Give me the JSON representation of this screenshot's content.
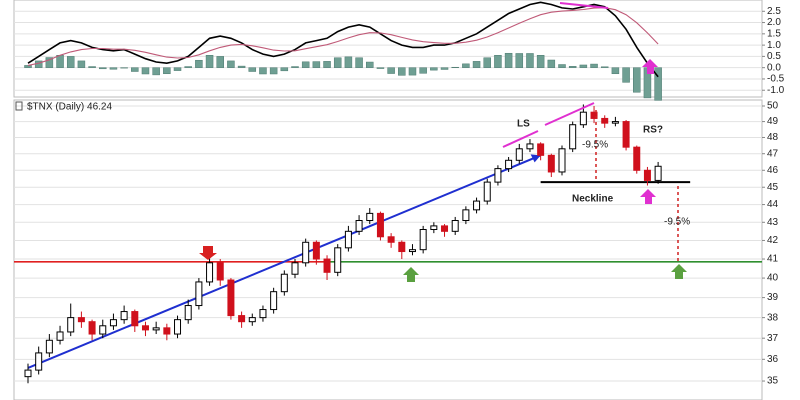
{
  "chart_data": [
    {
      "type": "macd",
      "ylim": [
        -1.3,
        3.0
      ],
      "yticks": [
        {
          "value": -1,
          "label": "-1.0"
        },
        -0.5,
        {
          "value": 0,
          "label": "0.0"
        },
        0.5,
        {
          "value": 1,
          "label": "1.0"
        },
        1.5,
        {
          "value": 2,
          "label": "2.0"
        },
        2.5
      ],
      "grid": true,
      "series": [
        {
          "kind": "histogram",
          "color": "#6f9f93",
          "values": [
            0.1,
            0.3,
            0.45,
            0.55,
            0.5,
            0.3,
            0.05,
            -0.05,
            -0.07,
            -0.02,
            -0.17,
            -0.28,
            -0.32,
            -0.27,
            -0.13,
            0.05,
            0.33,
            0.55,
            0.5,
            0.3,
            0.07,
            -0.17,
            -0.28,
            -0.28,
            -0.14,
            0.05,
            0.26,
            0.27,
            0.28,
            0.44,
            0.48,
            0.44,
            0.25,
            -0.04,
            -0.26,
            -0.34,
            -0.33,
            -0.25,
            -0.11,
            -0.08,
            0.02,
            0.17,
            0.28,
            0.44,
            0.55,
            0.64,
            0.63,
            0.63,
            0.55,
            0.34,
            0.14,
            0.06,
            0.12,
            0.16,
            0.04,
            -0.27,
            -0.65,
            -1.09,
            -1.34,
            -1.45
          ]
        },
        {
          "kind": "line",
          "color": "#000000",
          "values": [
            0.2,
            0.5,
            0.8,
            1.1,
            1.2,
            1.1,
            0.9,
            0.8,
            0.75,
            0.8,
            0.6,
            0.4,
            0.25,
            0.2,
            0.3,
            0.5,
            0.9,
            1.3,
            1.4,
            1.3,
            1.1,
            0.8,
            0.6,
            0.5,
            0.6,
            0.8,
            1.1,
            1.2,
            1.3,
            1.6,
            1.8,
            1.9,
            1.8,
            1.5,
            1.2,
            1.0,
            0.9,
            0.9,
            1.0,
            1.0,
            1.1,
            1.3,
            1.5,
            1.8,
            2.1,
            2.4,
            2.6,
            2.8,
            2.9,
            2.8,
            2.65,
            2.6,
            2.7,
            2.8,
            2.7,
            2.3,
            1.7,
            0.9,
            0.2,
            -0.4
          ]
        },
        {
          "kind": "line",
          "color": "#c05a78",
          "values": [
            0.1,
            0.2,
            0.35,
            0.55,
            0.7,
            0.8,
            0.85,
            0.85,
            0.82,
            0.82,
            0.77,
            0.68,
            0.57,
            0.47,
            0.43,
            0.45,
            0.57,
            0.75,
            0.9,
            1.0,
            1.03,
            0.97,
            0.88,
            0.78,
            0.74,
            0.75,
            0.84,
            0.93,
            1.02,
            1.16,
            1.32,
            1.46,
            1.55,
            1.54,
            1.46,
            1.34,
            1.23,
            1.15,
            1.11,
            1.08,
            1.08,
            1.13,
            1.22,
            1.36,
            1.55,
            1.76,
            1.97,
            2.17,
            2.35,
            2.46,
            2.51,
            2.54,
            2.58,
            2.64,
            2.66,
            2.57,
            2.35,
            1.99,
            1.54,
            1.05
          ]
        }
      ]
    },
    {
      "type": "candlestick",
      "title": "$TNX (Daily) 46.24",
      "log_scale": true,
      "ylim": [
        34.15,
        50.39
      ],
      "yticks": [
        35,
        36,
        37,
        38,
        39,
        40,
        41,
        42,
        43,
        44,
        45,
        46,
        47,
        48,
        49,
        50
      ],
      "grid": true,
      "up_color": "#ffffff",
      "down_color": "#d0101c",
      "open": [
        35.2,
        35.5,
        36.3,
        36.9,
        37.3,
        38.0,
        37.8,
        37.2,
        37.6,
        37.9,
        38.3,
        37.6,
        37.4,
        37.5,
        37.2,
        37.9,
        38.6,
        39.8,
        40.8,
        39.9,
        38.1,
        37.8,
        38.0,
        38.4,
        39.3,
        40.2,
        40.8,
        41.9,
        41.0,
        40.3,
        41.6,
        42.5,
        43.1,
        43.5,
        42.2,
        41.9,
        41.4,
        41.5,
        42.6,
        42.8,
        42.5,
        43.1,
        43.7,
        44.2,
        45.3,
        46.1,
        46.6,
        47.3,
        47.6,
        46.9,
        45.9,
        47.3,
        48.8,
        49.6,
        49.2,
        48.9,
        49.0,
        47.4,
        46.0,
        45.4
      ],
      "high": [
        35.8,
        36.6,
        37.2,
        37.6,
        38.7,
        38.3,
        37.9,
        37.9,
        38.2,
        38.6,
        38.4,
        37.8,
        37.8,
        37.7,
        38.1,
        38.9,
        40.0,
        41.1,
        41.0,
        40.0,
        38.3,
        38.2,
        38.6,
        39.5,
        40.4,
        41.0,
        42.1,
        42.0,
        41.2,
        41.8,
        42.8,
        43.4,
        43.8,
        43.6,
        42.4,
        42.0,
        41.8,
        42.8,
        43.0,
        42.9,
        43.3,
        43.9,
        44.4,
        45.5,
        46.3,
        46.8,
        47.6,
        47.9,
        47.7,
        47.0,
        47.5,
        49.0,
        50.1,
        50.0,
        49.4,
        49.3,
        49.1,
        47.5,
        46.2,
        46.5
      ],
      "low": [
        34.9,
        35.3,
        36.1,
        36.7,
        37.1,
        37.5,
        36.9,
        37.0,
        37.4,
        37.7,
        37.3,
        37.1,
        37.2,
        36.9,
        37.0,
        37.7,
        38.4,
        39.6,
        39.6,
        37.9,
        37.5,
        37.6,
        37.8,
        38.2,
        39.1,
        40.0,
        40.6,
        40.7,
        39.9,
        40.1,
        41.4,
        42.3,
        42.9,
        42.0,
        41.6,
        41.0,
        41.2,
        41.3,
        42.4,
        42.2,
        42.3,
        42.9,
        43.5,
        44.0,
        45.1,
        45.9,
        46.4,
        47.1,
        46.6,
        45.6,
        45.7,
        47.1,
        48.6,
        48.9,
        48.6,
        48.7,
        47.2,
        45.8,
        45.1,
        45.2
      ],
      "close": [
        35.5,
        36.3,
        36.9,
        37.3,
        38.0,
        37.8,
        37.2,
        37.6,
        37.9,
        38.3,
        37.6,
        37.4,
        37.5,
        37.2,
        37.9,
        38.6,
        39.8,
        40.8,
        39.9,
        38.1,
        37.8,
        38.0,
        38.4,
        39.3,
        40.2,
        40.8,
        41.9,
        41.0,
        40.3,
        41.6,
        42.5,
        43.1,
        43.5,
        42.2,
        41.9,
        41.4,
        41.5,
        42.6,
        42.8,
        42.5,
        43.1,
        43.7,
        44.2,
        45.3,
        46.1,
        46.6,
        47.3,
        47.6,
        46.9,
        45.9,
        47.3,
        48.8,
        49.6,
        49.2,
        48.9,
        49.0,
        47.4,
        46.0,
        45.4,
        46.24
      ],
      "reference_lines": [
        {
          "value": 40.85,
          "color": "#e02020"
        },
        {
          "value": 40.85,
          "color": "#2f8f2f"
        },
        {
          "value": 45.3,
          "color": "#000000"
        }
      ],
      "trendline": {
        "color": "#1f2fd0",
        "from": 35.6,
        "to": 46.9
      },
      "annotations": [
        "LS",
        "RS?",
        "Neckline",
        "-9.5%",
        "-9.5%"
      ]
    }
  ]
}
